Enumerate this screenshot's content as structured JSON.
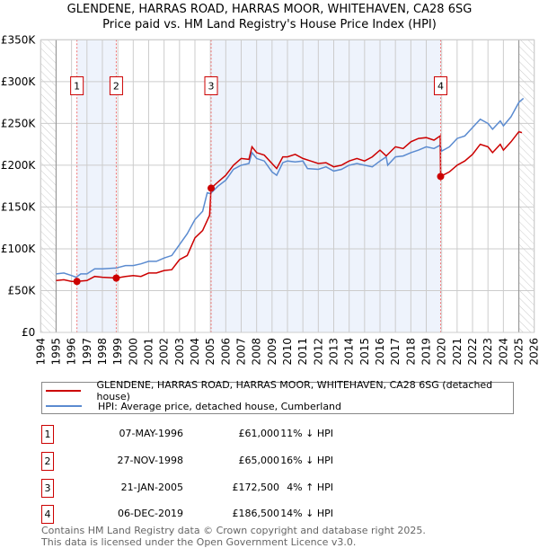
{
  "title": "GLENDENE, HARRAS ROAD, HARRAS MOOR, WHITEHAVEN, CA28 6SG",
  "subtitle": "Price paid vs. HM Land Registry's House Price Index (HPI)",
  "chart_data": {
    "type": "line",
    "xlim": [
      1994,
      2026
    ],
    "ylim": [
      0,
      350000
    ],
    "x_ticks": [
      "1994",
      "1995",
      "1996",
      "1997",
      "1998",
      "1999",
      "2000",
      "2001",
      "2002",
      "2003",
      "2004",
      "2005",
      "2006",
      "2007",
      "2008",
      "2009",
      "2010",
      "2011",
      "2012",
      "2013",
      "2014",
      "2015",
      "2016",
      "2017",
      "2018",
      "2019",
      "2020",
      "2021",
      "2022",
      "2023",
      "2024",
      "2025",
      "2026"
    ],
    "y_ticks": [
      {
        "v": 0,
        "label": "£0"
      },
      {
        "v": 50000,
        "label": "£50K"
      },
      {
        "v": 100000,
        "label": "£100K"
      },
      {
        "v": 150000,
        "label": "£150K"
      },
      {
        "v": 200000,
        "label": "£200K"
      },
      {
        "v": 250000,
        "label": "£250K"
      },
      {
        "v": 300000,
        "label": "£300K"
      },
      {
        "v": 350000,
        "label": "£350K"
      }
    ],
    "grid": true,
    "hatched_before": 1995,
    "hatched_after": 2025,
    "shaded_ranges": [
      [
        1996.35,
        1998.9
      ],
      [
        2005.05,
        2019.93
      ]
    ],
    "colors": {
      "property": "#cc0000",
      "hpi": "#5b8bd0",
      "marker": "#cc0000",
      "shade": "#eef3fc"
    },
    "series": [
      {
        "name": "GLENDENE, HARRAS ROAD, HARRAS MOOR, WHITEHAVEN, CA28 6SG (detached house)",
        "key": "property",
        "x": [
          1995,
          1995.5,
          1996,
          1996.35,
          1997,
          1997.5,
          1998,
          1998.9,
          1999.5,
          2000,
          2000.5,
          2001,
          2001.5,
          2002,
          2002.5,
          2003,
          2003.5,
          2004,
          2004.5,
          2004.95,
          2005.05,
          2005.5,
          2006,
          2006.5,
          2007,
          2007.5,
          2007.7,
          2008,
          2008.5,
          2009,
          2009.3,
          2009.7,
          2010,
          2010.5,
          2011,
          2011.5,
          2012,
          2012.5,
          2013,
          2013.5,
          2014,
          2014.5,
          2015,
          2015.5,
          2016,
          2016.4,
          2017,
          2017.5,
          2018,
          2018.5,
          2019,
          2019.5,
          2019.9,
          2019.93,
          2020.5,
          2021,
          2021.5,
          2022,
          2022.5,
          2023,
          2023.3,
          2023.8,
          2024,
          2024.5,
          2025,
          2025.2
        ],
        "y": [
          62000,
          63000,
          61000,
          61000,
          62000,
          67000,
          66000,
          65000,
          67000,
          68000,
          67000,
          71000,
          71000,
          74000,
          75000,
          87000,
          92000,
          113000,
          122000,
          140000,
          172500,
          180000,
          188000,
          200000,
          208000,
          207000,
          222000,
          215000,
          212000,
          202000,
          196000,
          210000,
          210000,
          213000,
          208000,
          205000,
          202000,
          203000,
          198000,
          200000,
          205000,
          208000,
          205000,
          210000,
          218000,
          211000,
          222000,
          220000,
          228000,
          232000,
          233000,
          230000,
          235000,
          186500,
          192000,
          200000,
          205000,
          213000,
          225000,
          222000,
          215000,
          225000,
          218000,
          228000,
          240000,
          239000
        ]
      },
      {
        "name": "HPI: Average price, detached house, Cumberland",
        "key": "hpi",
        "x": [
          1995,
          1995.5,
          1996,
          1996.3,
          1996.6,
          1997,
          1997.5,
          1998,
          1998.9,
          1999.5,
          2000,
          2000.5,
          2001,
          2001.5,
          2002,
          2002.5,
          2003,
          2003.5,
          2004,
          2004.5,
          2004.8,
          2005,
          2005.5,
          2006,
          2006.5,
          2007,
          2007.5,
          2007.7,
          2008,
          2008.5,
          2009,
          2009.3,
          2009.7,
          2010,
          2010.5,
          2011,
          2011.3,
          2012,
          2012.5,
          2013,
          2013.5,
          2014,
          2014.5,
          2015,
          2015.5,
          2016,
          2016.4,
          2016.5,
          2017,
          2017.5,
          2018,
          2018.5,
          2019,
          2019.5,
          2019.9,
          2020,
          2020.5,
          2021,
          2021.5,
          2022,
          2022.5,
          2023,
          2023.3,
          2023.8,
          2024,
          2024.5,
          2025,
          2025.3
        ],
        "y": [
          70000,
          71000,
          68000,
          66000,
          70000,
          70000,
          76000,
          76000,
          77000,
          80000,
          80000,
          82000,
          85000,
          85000,
          89000,
          92000,
          105000,
          118000,
          135000,
          145000,
          167000,
          166000,
          175000,
          182000,
          195000,
          200000,
          202000,
          215000,
          208000,
          205000,
          192000,
          188000,
          203000,
          205000,
          204000,
          205000,
          196000,
          195000,
          198000,
          193000,
          195000,
          200000,
          202000,
          200000,
          198000,
          205000,
          210000,
          200000,
          210000,
          211000,
          215000,
          218000,
          222000,
          220000,
          224000,
          217000,
          222000,
          232000,
          235000,
          245000,
          255000,
          250000,
          243000,
          253000,
          247000,
          258000,
          275000,
          280000
        ]
      }
    ],
    "markers": [
      {
        "num": "1",
        "x": 1996.35,
        "y": 61000
      },
      {
        "num": "2",
        "x": 1998.9,
        "y": 65000
      },
      {
        "num": "3",
        "x": 2005.05,
        "y": 172500
      },
      {
        "num": "4",
        "x": 2019.93,
        "y": 186500
      }
    ],
    "marker_label_value": 295000
  },
  "legend": {
    "property_label": "GLENDENE, HARRAS ROAD, HARRAS MOOR, WHITEHAVEN, CA28 6SG (detached house)",
    "hpi_label": "HPI: Average price, detached house, Cumberland"
  },
  "transactions": [
    {
      "num": "1",
      "date": "07-MAY-1996",
      "price": "£61,000",
      "pct": "11% ↓ HPI"
    },
    {
      "num": "2",
      "date": "27-NOV-1998",
      "price": "£65,000",
      "pct": "16% ↓ HPI"
    },
    {
      "num": "3",
      "date": "21-JAN-2005",
      "price": "£172,500",
      "pct": "4% ↑ HPI"
    },
    {
      "num": "4",
      "date": "06-DEC-2019",
      "price": "£186,500",
      "pct": "14% ↓ HPI"
    }
  ],
  "footer": {
    "line1": "Contains HM Land Registry data © Crown copyright and database right 2025.",
    "line2": "This data is licensed under the Open Government Licence v3.0."
  }
}
